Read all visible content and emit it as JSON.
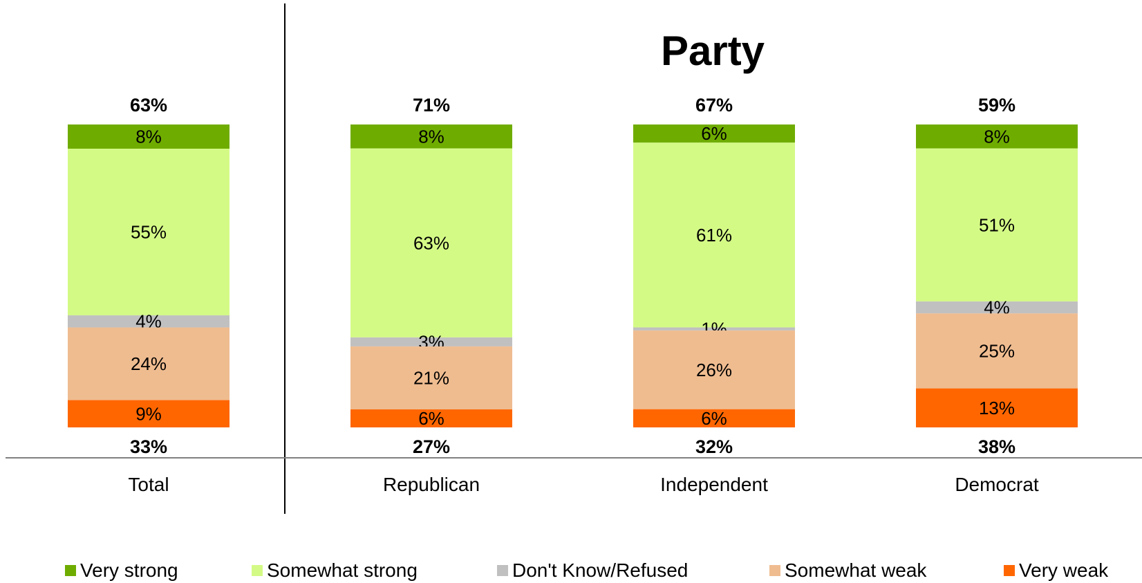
{
  "chart_data": {
    "type": "bar",
    "stacked": true,
    "group_title": "Party",
    "categories": [
      "Total",
      "Republican",
      "Independent",
      "Democrat"
    ],
    "series": [
      {
        "name": "Very strong",
        "color": "#6FAC00",
        "values": [
          8,
          8,
          6,
          8
        ],
        "labels": [
          "8%",
          "8%",
          "6%",
          "8%"
        ]
      },
      {
        "name": "Somewhat strong",
        "color": "#D4FA86",
        "values": [
          55,
          63,
          61,
          51
        ],
        "labels": [
          "55%",
          "63%",
          "61%",
          "51%"
        ]
      },
      {
        "name": "Don't Know/Refused",
        "color": "#C0C0C0",
        "values": [
          4,
          3,
          1,
          4
        ],
        "labels": [
          "4%",
          "3%",
          "1%",
          "4%"
        ]
      },
      {
        "name": "Somewhat weak",
        "color": "#EFBC90",
        "values": [
          24,
          21,
          26,
          25
        ],
        "labels": [
          "24%",
          "21%",
          "26%",
          "25%"
        ]
      },
      {
        "name": "Very weak",
        "color": "#FF6600",
        "values": [
          9,
          6,
          6,
          13
        ],
        "labels": [
          "9%",
          "6%",
          "6%",
          "13%"
        ]
      }
    ],
    "top_totals": [
      "63%",
      "71%",
      "67%",
      "59%"
    ],
    "bottom_totals": [
      "33%",
      "27%",
      "32%",
      "38%"
    ],
    "legend_position": "bottom",
    "grid": false
  }
}
